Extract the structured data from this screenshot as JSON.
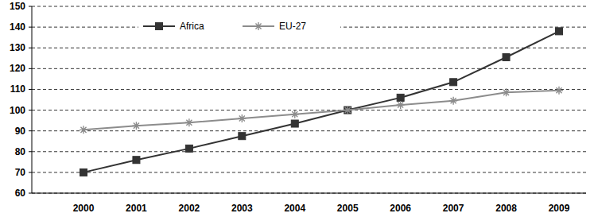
{
  "chart_data": {
    "type": "line",
    "categories": [
      "2000",
      "2001",
      "2002",
      "2003",
      "2004",
      "2005",
      "2006",
      "2007",
      "2008",
      "2009"
    ],
    "series": [
      {
        "name": "Africa",
        "color": "#333333",
        "marker": "square",
        "line_style": "solid",
        "values": [
          70,
          76,
          81.5,
          87.5,
          93.5,
          100,
          106,
          113.5,
          125.5,
          138
        ]
      },
      {
        "name": "EU-27",
        "color": "#8c8c8c",
        "marker": "star",
        "line_style": "solid",
        "values": [
          90.5,
          92.5,
          94,
          96,
          98,
          100,
          102.5,
          104.5,
          108.5,
          109.5
        ]
      }
    ],
    "ylim": [
      60,
      150
    ],
    "yticks": [
      60,
      70,
      80,
      90,
      100,
      110,
      120,
      130,
      140,
      150
    ],
    "grid": true,
    "legend": "top"
  }
}
